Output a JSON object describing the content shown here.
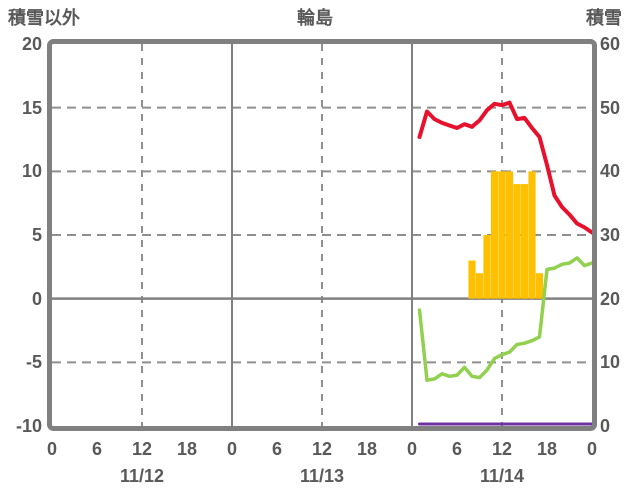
{
  "header": {
    "left_axis_title": "積雪以外",
    "station_title": "輪島",
    "right_axis_title": "積雪"
  },
  "chart_data": {
    "type": "combo",
    "title": "輪島",
    "left_axis": {
      "title": "積雪以外",
      "min": -10,
      "max": 20,
      "ticks": [
        20,
        15,
        10,
        5,
        0,
        -5,
        -10
      ]
    },
    "right_axis": {
      "title": "積雪",
      "min": 0,
      "max": 60,
      "ticks": [
        60,
        50,
        40,
        30,
        20,
        10,
        0
      ]
    },
    "x_axis": {
      "days": 3,
      "hours_per_day": 24,
      "total_hours": 72,
      "hour_tick_step": 6,
      "hour_labels": [
        "0",
        "6",
        "12",
        "18",
        "0",
        "6",
        "12",
        "18",
        "0",
        "6",
        "12",
        "18",
        "0"
      ],
      "day_labels": [
        "11/12",
        "11/13",
        "11/14"
      ]
    },
    "grid": {
      "frame_color": "#808080",
      "solid_line_color": "#808080",
      "dash_line_color": "#8f8f8f",
      "background": "#ffffff"
    },
    "series": [
      {
        "name": "orange-bars",
        "type": "bar",
        "axis": "left",
        "color": "#FFC000",
        "day": "11/14",
        "start_hour": 8,
        "values": [
          3,
          2,
          5,
          10,
          10,
          10,
          9,
          9,
          10,
          2
        ]
      },
      {
        "name": "purple-line",
        "type": "line",
        "axis": "right",
        "color": "#7030A0",
        "day": "11/14",
        "start_hour": 1,
        "values": [
          0,
          0,
          0,
          0,
          0,
          0,
          0,
          0,
          0,
          0,
          0,
          0,
          0,
          0,
          0,
          0,
          0,
          0,
          0,
          0,
          0,
          0,
          0,
          0
        ]
      },
      {
        "name": "green-line",
        "type": "line",
        "axis": "left",
        "color": "#92D050",
        "day": "11/14",
        "start_hour": 1,
        "values": [
          -0.9,
          -6.4,
          -6.3,
          -5.9,
          -6.1,
          -6.0,
          -5.4,
          -6.1,
          -6.2,
          -5.6,
          -4.7,
          -4.4,
          -4.2,
          -3.6,
          -3.5,
          -3.3,
          -3.0,
          2.3,
          2.4,
          2.7,
          2.8,
          3.2,
          2.6,
          2.8
        ]
      },
      {
        "name": "red-line",
        "type": "line",
        "axis": "left",
        "color": "#E8112D",
        "day": "11/14",
        "start_hour": 1,
        "values": [
          12.7,
          14.7,
          14.1,
          13.8,
          13.6,
          13.4,
          13.7,
          13.5,
          14.0,
          14.8,
          15.3,
          15.2,
          15.4,
          14.1,
          14.2,
          13.4,
          12.7,
          10.5,
          8.1,
          7.2,
          6.6,
          5.9,
          5.6,
          5.2
        ]
      }
    ]
  }
}
